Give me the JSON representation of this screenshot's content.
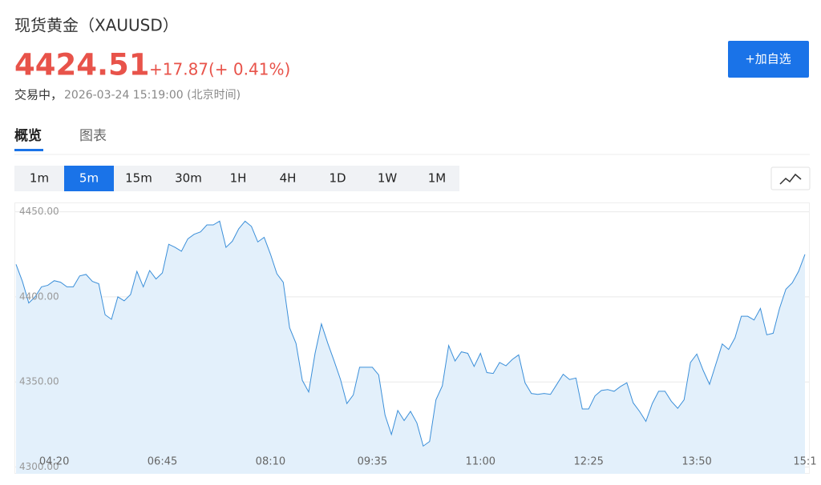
{
  "header": {
    "title": "现货黄金（XAUUSD）",
    "price": "4424.51",
    "change": "+17.87",
    "change_pct": "(+ 0.41%)",
    "status": "交易中，",
    "timestamp": "2026-03-24 15:19:00 (北京时间)",
    "button": "+加自选"
  },
  "tabs": {
    "items": [
      "概览",
      "图表"
    ],
    "active": 0
  },
  "intervals": {
    "items": [
      "1m",
      "5m",
      "15m",
      "30m",
      "1H",
      "4H",
      "1D",
      "1W",
      "1M"
    ],
    "active": 1
  },
  "chart_data": {
    "type": "area",
    "color": "#3b8fd9",
    "fill_color": "#e3f0fb",
    "grid": true,
    "ylim": [
      4296,
      4455
    ],
    "yticks": [
      {
        "value": 4300,
        "label": "4300.00"
      },
      {
        "value": 4350,
        "label": "4350.00"
      },
      {
        "value": 4400,
        "label": "4400.00"
      },
      {
        "value": 4450,
        "label": "4450.00"
      }
    ],
    "categories": [
      null,
      null,
      null,
      null,
      null,
      null,
      "04:20",
      null,
      null,
      null,
      null,
      null,
      null,
      null,
      null,
      null,
      null,
      null,
      null,
      null,
      null,
      null,
      null,
      "06:45",
      null,
      null,
      null,
      null,
      null,
      null,
      null,
      null,
      null,
      null,
      null,
      null,
      null,
      null,
      null,
      null,
      "08:10",
      null,
      null,
      null,
      null,
      null,
      null,
      null,
      null,
      null,
      null,
      null,
      null,
      null,
      null,
      null,
      "09:35",
      null,
      null,
      null,
      null,
      null,
      null,
      null,
      null,
      null,
      null,
      null,
      null,
      null,
      null,
      null,
      null,
      "11:00",
      null,
      null,
      null,
      null,
      null,
      null,
      null,
      null,
      null,
      null,
      null,
      null,
      null,
      null,
      null,
      null,
      "12:25",
      null,
      null,
      null,
      null,
      null,
      null,
      null,
      null,
      null,
      null,
      null,
      null,
      null,
      null,
      null,
      null,
      "13:50",
      null,
      null,
      null,
      null,
      null,
      null,
      null,
      null,
      null,
      null,
      null,
      null,
      null,
      null,
      null,
      null,
      "15:1"
    ],
    "values": [
      4419.1,
      4409.1,
      4396.4,
      4400.0,
      4405.9,
      4406.8,
      4409.5,
      4408.6,
      4405.9,
      4405.9,
      4412.3,
      4413.2,
      4409.1,
      4407.7,
      4389.5,
      4386.8,
      4400.0,
      4397.7,
      4401.4,
      4415.0,
      4405.9,
      4415.5,
      4410.5,
      4414.1,
      4430.9,
      4429.1,
      4426.8,
      4434.1,
      4436.8,
      4438.2,
      4442.3,
      4442.3,
      4444.5,
      4429.1,
      4432.7,
      4440.0,
      4444.5,
      4441.4,
      4432.3,
      4435.0,
      4425.0,
      4413.6,
      4408.6,
      4381.8,
      4372.7,
      4350.9,
      4344.1,
      4366.8,
      4384.1,
      4372.7,
      4362.3,
      4351.4,
      4337.3,
      4342.3,
      4358.6,
      4358.6,
      4358.6,
      4354.1,
      4330.5,
      4319.1,
      4333.2,
      4327.3,
      4332.7,
      4325.9,
      4312.3,
      4315.0,
      4339.5,
      4347.7,
      4371.4,
      4362.3,
      4367.7,
      4366.8,
      4359.1,
      4366.8,
      4355.5,
      4355.0,
      4361.4,
      4359.5,
      4363.2,
      4365.9,
      4349.5,
      4343.2,
      4342.7,
      4343.2,
      4342.7,
      4348.6,
      4354.5,
      4351.4,
      4352.3,
      4334.1,
      4334.1,
      4341.8,
      4345.0,
      4345.5,
      4344.5,
      4347.3,
      4349.5,
      4337.7,
      4332.7,
      4326.8,
      4337.3,
      4344.5,
      4344.5,
      4338.6,
      4334.5,
      4339.5,
      4361.4,
      4366.4,
      4356.8,
      4348.6,
      4360.5,
      4372.3,
      4369.1,
      4375.9,
      4388.6,
      4388.6,
      4386.4,
      4393.2,
      4377.7,
      4378.6,
      4393.2,
      4404.5,
      4408.2,
      4415.0,
      4425.0
    ]
  }
}
